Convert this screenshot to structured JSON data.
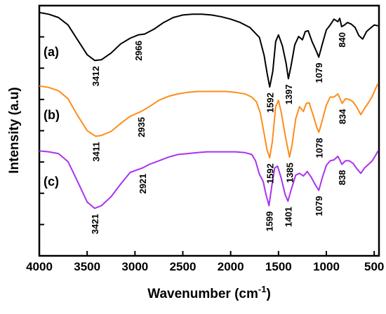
{
  "chart_data": {
    "type": "line",
    "xlabel": "Wavenumber (cm",
    "xlabel_sup": "-1",
    "xlabel_close": ")",
    "ylabel": "Intensity (a.u)",
    "xlim": [
      4000,
      450
    ],
    "x_ticks": [
      "4000",
      "3500",
      "3000",
      "2500",
      "2000",
      "1500",
      "1000",
      "500"
    ],
    "x_tick_values": [
      4000,
      3500,
      3000,
      2500,
      2000,
      1500,
      1000,
      500
    ],
    "y_tick_count": 7,
    "y_ticks_labeled": false,
    "grid": false,
    "series": [
      {
        "name": "(a)",
        "color": "#000000",
        "points": [
          [
            4000,
            0.95
          ],
          [
            3900,
            0.93
          ],
          [
            3800,
            0.89
          ],
          [
            3700,
            0.8
          ],
          [
            3600,
            0.62
          ],
          [
            3500,
            0.44
          ],
          [
            3420,
            0.37
          ],
          [
            3350,
            0.38
          ],
          [
            3250,
            0.46
          ],
          [
            3150,
            0.57
          ],
          [
            3050,
            0.64
          ],
          [
            2966,
            0.68
          ],
          [
            2900,
            0.69
          ],
          [
            2800,
            0.75
          ],
          [
            2700,
            0.83
          ],
          [
            2600,
            0.89
          ],
          [
            2500,
            0.92
          ],
          [
            2400,
            0.93
          ],
          [
            2300,
            0.93
          ],
          [
            2200,
            0.92
          ],
          [
            2100,
            0.9
          ],
          [
            2000,
            0.87
          ],
          [
            1900,
            0.83
          ],
          [
            1800,
            0.77
          ],
          [
            1700,
            0.65
          ],
          [
            1650,
            0.43
          ],
          [
            1620,
            0.22
          ],
          [
            1592,
            0.05
          ],
          [
            1560,
            0.24
          ],
          [
            1530,
            0.6
          ],
          [
            1500,
            0.68
          ],
          [
            1460,
            0.55
          ],
          [
            1420,
            0.33
          ],
          [
            1397,
            0.15
          ],
          [
            1370,
            0.3
          ],
          [
            1330,
            0.56
          ],
          [
            1290,
            0.66
          ],
          [
            1250,
            0.62
          ],
          [
            1220,
            0.72
          ],
          [
            1190,
            0.73
          ],
          [
            1150,
            0.6
          ],
          [
            1100,
            0.47
          ],
          [
            1079,
            0.41
          ],
          [
            1040,
            0.58
          ],
          [
            1000,
            0.74
          ],
          [
            960,
            0.8
          ],
          [
            920,
            0.87
          ],
          [
            880,
            0.84
          ],
          [
            860,
            0.88
          ],
          [
            840,
            0.78
          ],
          [
            810,
            0.8
          ],
          [
            780,
            0.83
          ],
          [
            740,
            0.81
          ],
          [
            700,
            0.77
          ],
          [
            660,
            0.67
          ],
          [
            620,
            0.63
          ],
          [
            580,
            0.72
          ],
          [
            540,
            0.76
          ],
          [
            500,
            0.8
          ],
          [
            460,
            0.79
          ]
        ]
      },
      {
        "name": "(b)",
        "color": "#ff8c1a",
        "points": [
          [
            4000,
            0.96
          ],
          [
            3900,
            0.94
          ],
          [
            3800,
            0.9
          ],
          [
            3700,
            0.8
          ],
          [
            3600,
            0.59
          ],
          [
            3500,
            0.4
          ],
          [
            3411,
            0.33
          ],
          [
            3350,
            0.34
          ],
          [
            3250,
            0.39
          ],
          [
            3150,
            0.49
          ],
          [
            3050,
            0.58
          ],
          [
            2935,
            0.64
          ],
          [
            2850,
            0.7
          ],
          [
            2750,
            0.78
          ],
          [
            2650,
            0.83
          ],
          [
            2550,
            0.86
          ],
          [
            2450,
            0.88
          ],
          [
            2350,
            0.89
          ],
          [
            2250,
            0.89
          ],
          [
            2150,
            0.89
          ],
          [
            2050,
            0.89
          ],
          [
            1950,
            0.88
          ],
          [
            1850,
            0.86
          ],
          [
            1780,
            0.82
          ],
          [
            1730,
            0.76
          ],
          [
            1690,
            0.62
          ],
          [
            1650,
            0.36
          ],
          [
            1620,
            0.16
          ],
          [
            1592,
            0.06
          ],
          [
            1565,
            0.26
          ],
          [
            1530,
            0.7
          ],
          [
            1500,
            0.78
          ],
          [
            1470,
            0.62
          ],
          [
            1430,
            0.34
          ],
          [
            1385,
            0.07
          ],
          [
            1360,
            0.21
          ],
          [
            1320,
            0.55
          ],
          [
            1280,
            0.7
          ],
          [
            1240,
            0.64
          ],
          [
            1210,
            0.74
          ],
          [
            1180,
            0.75
          ],
          [
            1140,
            0.6
          ],
          [
            1100,
            0.44
          ],
          [
            1078,
            0.38
          ],
          [
            1040,
            0.54
          ],
          [
            1000,
            0.72
          ],
          [
            960,
            0.82
          ],
          [
            920,
            0.82
          ],
          [
            880,
            0.86
          ],
          [
            860,
            0.81
          ],
          [
            834,
            0.74
          ],
          [
            800,
            0.8
          ],
          [
            760,
            0.79
          ],
          [
            720,
            0.76
          ],
          [
            680,
            0.69
          ],
          [
            640,
            0.6
          ],
          [
            600,
            0.68
          ],
          [
            560,
            0.75
          ],
          [
            520,
            0.83
          ],
          [
            480,
            0.94
          ],
          [
            460,
            0.99
          ]
        ]
      },
      {
        "name": "(c)",
        "color": "#aa33ee",
        "points": [
          [
            4000,
            0.99
          ],
          [
            3900,
            0.98
          ],
          [
            3800,
            0.96
          ],
          [
            3700,
            0.87
          ],
          [
            3600,
            0.65
          ],
          [
            3500,
            0.42
          ],
          [
            3421,
            0.35
          ],
          [
            3350,
            0.38
          ],
          [
            3250,
            0.48
          ],
          [
            3150,
            0.62
          ],
          [
            3050,
            0.75
          ],
          [
            2921,
            0.8
          ],
          [
            2850,
            0.84
          ],
          [
            2750,
            0.88
          ],
          [
            2650,
            0.92
          ],
          [
            2550,
            0.95
          ],
          [
            2450,
            0.96
          ],
          [
            2350,
            0.97
          ],
          [
            2250,
            0.98
          ],
          [
            2150,
            0.98
          ],
          [
            2050,
            0.98
          ],
          [
            1950,
            0.98
          ],
          [
            1850,
            0.97
          ],
          [
            1780,
            0.95
          ],
          [
            1740,
            0.88
          ],
          [
            1700,
            0.73
          ],
          [
            1660,
            0.65
          ],
          [
            1630,
            0.5
          ],
          [
            1599,
            0.38
          ],
          [
            1570,
            0.6
          ],
          [
            1540,
            0.8
          ],
          [
            1510,
            0.82
          ],
          [
            1470,
            0.68
          ],
          [
            1430,
            0.5
          ],
          [
            1401,
            0.43
          ],
          [
            1370,
            0.55
          ],
          [
            1320,
            0.72
          ],
          [
            1280,
            0.74
          ],
          [
            1240,
            0.71
          ],
          [
            1200,
            0.76
          ],
          [
            1160,
            0.7
          ],
          [
            1120,
            0.62
          ],
          [
            1079,
            0.55
          ],
          [
            1040,
            0.7
          ],
          [
            1000,
            0.83
          ],
          [
            960,
            0.88
          ],
          [
            920,
            0.89
          ],
          [
            880,
            0.93
          ],
          [
            860,
            0.89
          ],
          [
            838,
            0.84
          ],
          [
            800,
            0.88
          ],
          [
            760,
            0.88
          ],
          [
            720,
            0.85
          ],
          [
            680,
            0.79
          ],
          [
            640,
            0.74
          ],
          [
            600,
            0.8
          ],
          [
            560,
            0.84
          ],
          [
            520,
            0.88
          ],
          [
            480,
            0.95
          ],
          [
            460,
            0.99
          ]
        ]
      }
    ],
    "annotations": [
      {
        "series": 0,
        "text": "3412",
        "x": 3412
      },
      {
        "series": 0,
        "text": "2966",
        "x": 2966
      },
      {
        "series": 0,
        "text": "1592",
        "x": 1592
      },
      {
        "series": 0,
        "text": "1397",
        "x": 1397
      },
      {
        "series": 0,
        "text": "1079",
        "x": 1079
      },
      {
        "series": 0,
        "text": "840",
        "x": 840
      },
      {
        "series": 1,
        "text": "3411",
        "x": 3411
      },
      {
        "series": 1,
        "text": "2935",
        "x": 2935
      },
      {
        "series": 1,
        "text": "1592",
        "x": 1592
      },
      {
        "series": 1,
        "text": "1385",
        "x": 1385
      },
      {
        "series": 1,
        "text": "1078",
        "x": 1078
      },
      {
        "series": 1,
        "text": "834",
        "x": 834
      },
      {
        "series": 2,
        "text": "3421",
        "x": 3421
      },
      {
        "series": 2,
        "text": "2921",
        "x": 2921
      },
      {
        "series": 2,
        "text": "1599",
        "x": 1599
      },
      {
        "series": 2,
        "text": "1401",
        "x": 1401
      },
      {
        "series": 2,
        "text": "1079",
        "x": 1079
      },
      {
        "series": 2,
        "text": "838",
        "x": 838
      }
    ]
  }
}
